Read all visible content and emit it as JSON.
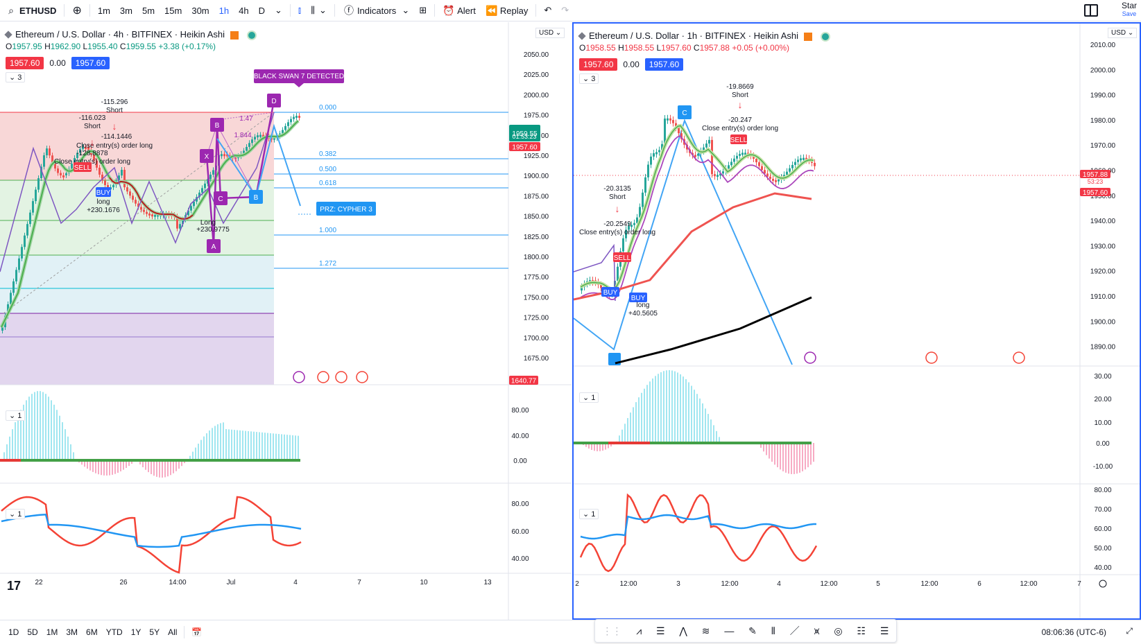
{
  "toolbar": {
    "symbol": "ETHUSD",
    "intervals": [
      "1m",
      "3m",
      "5m",
      "15m",
      "30m",
      "1h",
      "4h",
      "D"
    ],
    "active_interval": "1h",
    "indicators_label": "Indicators",
    "alert_label": "Alert",
    "replay_label": "Replay",
    "star_label": "Star",
    "save_label": "Save"
  },
  "left_chart": {
    "title": "Ethereum / U.S. Dollar · 4h · BITFINEX · Heikin Ashi",
    "ohlc": {
      "o": "1957.95",
      "h": "1962.90",
      "l": "1955.40",
      "c": "1959.55",
      "chg": "+3.38 (+0.17%)"
    },
    "bid": "1957.60",
    "spread": "0.00",
    "ask": "1957.60",
    "currency": "USD",
    "main_indicator_count": "3",
    "osc1_count": "1",
    "osc2_count": "1",
    "price_axis": [
      "2050.00",
      "2025.00",
      "2000.00",
      "1975.00",
      "1950.00",
      "1925.00",
      "1900.00",
      "1875.00",
      "1850.00",
      "1825.00",
      "1800.00",
      "1775.00",
      "1750.00",
      "1725.00",
      "1700.00",
      "1675.00"
    ],
    "last_price": "1959.55",
    "countdown": "01:53:23",
    "bid_tag": "1957.60",
    "low_tag": "1640.77",
    "osc1_axis": [
      "80.00",
      "40.00",
      "0.00"
    ],
    "osc2_axis": [
      "80.00",
      "60.00",
      "40.00"
    ],
    "time_axis": [
      "22",
      "26",
      "14:00",
      "Jul",
      "4",
      "7",
      "10",
      "13"
    ],
    "fib_levels": [
      "0.000",
      "0.382",
      "0.500",
      "0.618",
      "1.000",
      "1.272"
    ],
    "banner": "BLACK SWAN 7 DETECTED",
    "prz_label": "PRZ: CYPHER 3",
    "pattern_points": [
      "X",
      "A",
      "B",
      "C",
      "D",
      "B",
      "C"
    ],
    "ratios": [
      "1.47",
      "1.844"
    ],
    "annotations": [
      "-115.296",
      "Short",
      "-116.023",
      "Short",
      "-114.1446",
      "Close entry(s) order long",
      "-128.8878",
      "Close entry(s) order long",
      "SELL",
      "BUY",
      "long",
      "+230.1676",
      "Long",
      "+230.9775"
    ]
  },
  "right_chart": {
    "title": "Ethereum / U.S. Dollar · 1h · BITFINEX · Heikin Ashi",
    "ohlc": {
      "o": "1958.55",
      "h": "1958.55",
      "l": "1957.60",
      "c": "1957.88",
      "chg": "+0.05 (+0.00%)"
    },
    "bid": "1957.60",
    "spread": "0.00",
    "ask": "1957.60",
    "currency": "USD",
    "main_indicator_count": "3",
    "osc1_count": "1",
    "osc2_count": "1",
    "price_axis": [
      "2010.00",
      "2000.00",
      "1990.00",
      "1980.00",
      "1970.00",
      "1960.00",
      "1950.00",
      "1940.00",
      "1930.00",
      "1920.00",
      "1910.00",
      "1900.00",
      "1890.00"
    ],
    "last_price": "1957.88",
    "countdown": "53:23",
    "bid_tag": "1957.60",
    "osc1_axis": [
      "30.00",
      "20.00",
      "10.00",
      "0.00",
      "-10.00"
    ],
    "osc2_axis": [
      "80.00",
      "70.00",
      "60.00",
      "50.00",
      "40.00"
    ],
    "time_axis": [
      "2",
      "12:00",
      "3",
      "12:00",
      "4",
      "12:00",
      "5",
      "12:00",
      "6",
      "12:00",
      "7"
    ],
    "annotations": [
      "-19.8669",
      "Short",
      "-20.247",
      "Close entry(s) order long",
      "-20.3135",
      "Short",
      "-20.2549",
      "Close entry(s) order long",
      "SELL",
      "BUY",
      "BUY",
      "long",
      "+40.5605",
      "SELL",
      "C"
    ]
  },
  "bottom": {
    "ranges": [
      "1D",
      "5D",
      "1M",
      "3M",
      "6M",
      "YTD",
      "1Y",
      "5Y",
      "All"
    ],
    "clock": "08:06:36 (UTC-6)"
  },
  "colors": {
    "accent": "#2962ff",
    "up": "#089981",
    "down": "#f23645",
    "purple": "#9c27b0",
    "cyan": "#4dd0e1"
  }
}
